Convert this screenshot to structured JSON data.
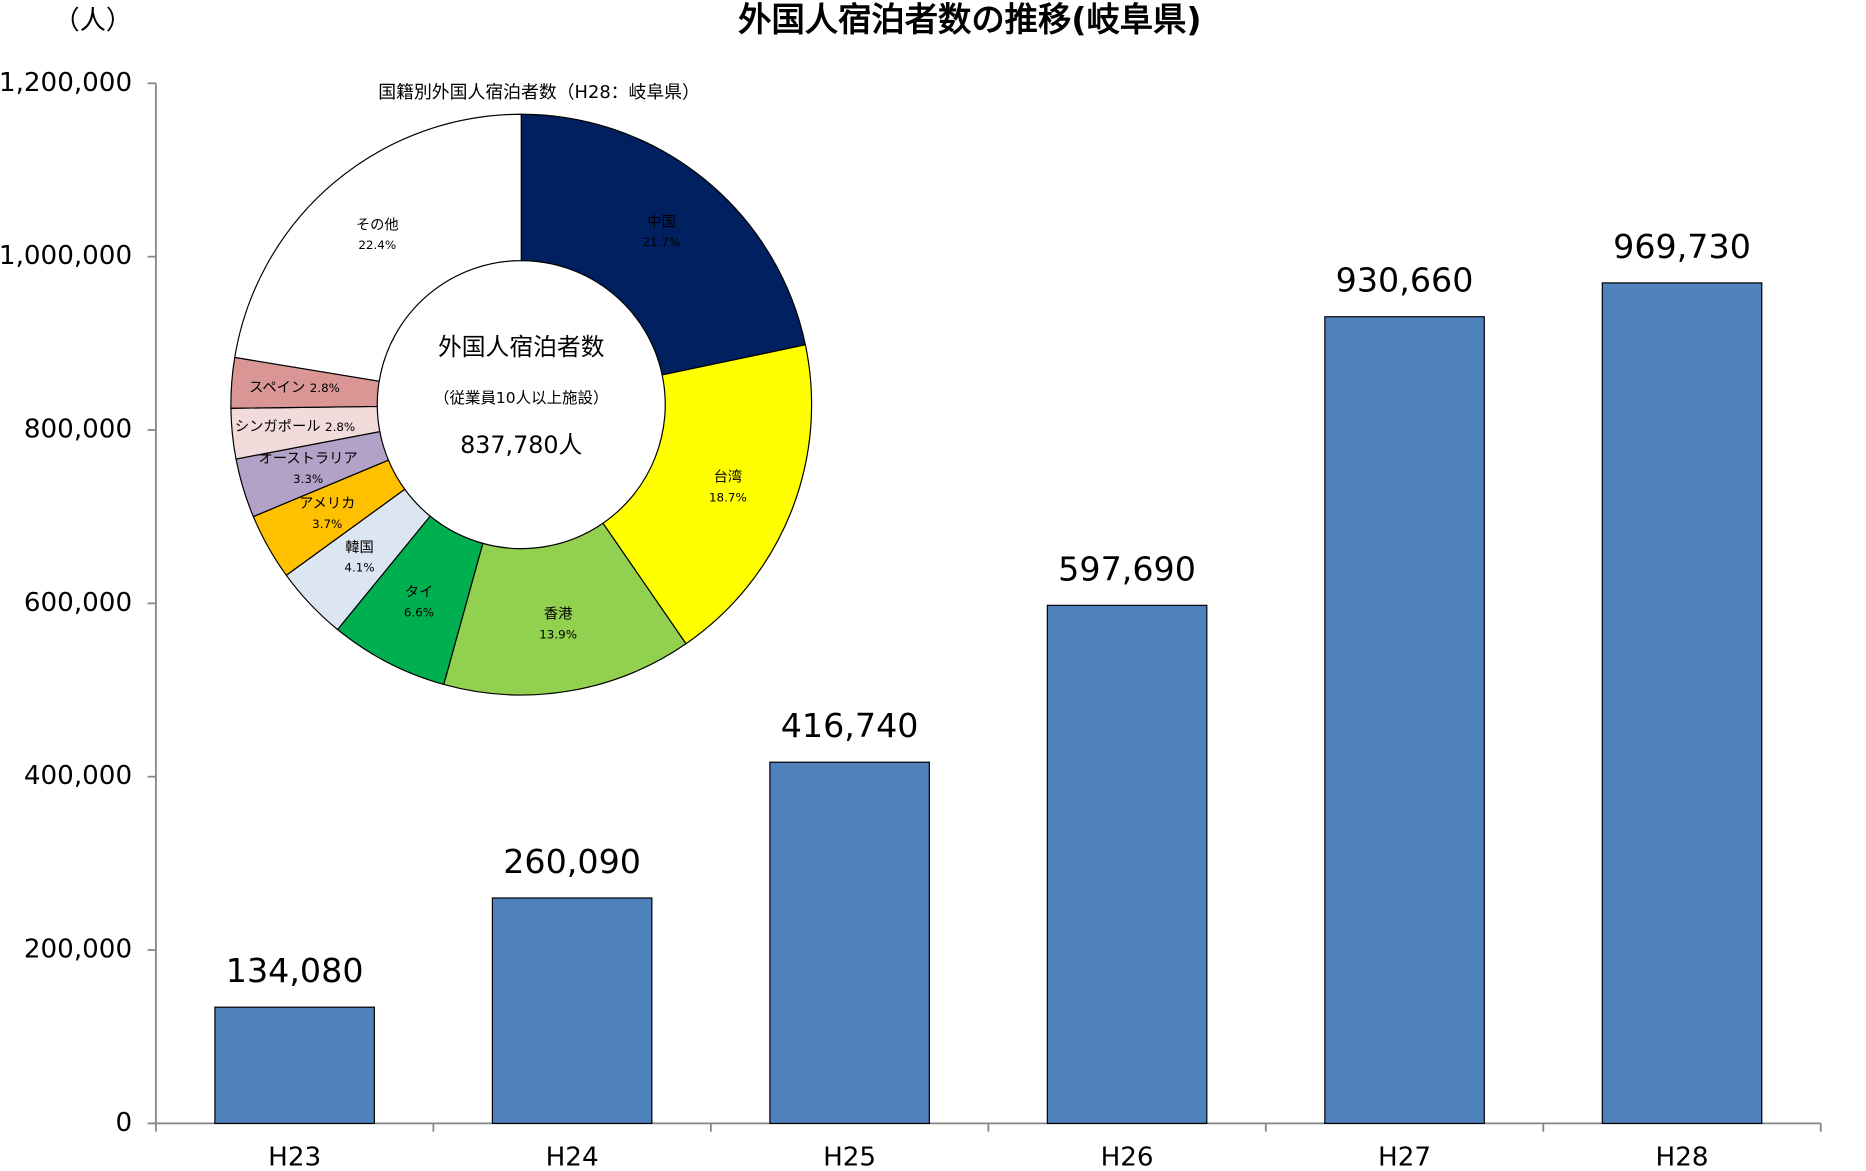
{
  "chart_data": [
    {
      "type": "bar",
      "title": "外国人宿泊者数の推移(岐阜県)",
      "y_unit": "（人）",
      "categories": [
        "H23",
        "H24",
        "H25",
        "H26",
        "H27",
        "H28"
      ],
      "values": [
        134080,
        260090,
        416740,
        597690,
        930660,
        969730
      ],
      "value_labels": [
        "134,080",
        "260,090",
        "416,740",
        "597,690",
        "930,660",
        "969,730"
      ],
      "color": "#4f81bd",
      "ylim": [
        0,
        1200000
      ],
      "yticks": [
        0,
        {
          "value": 200000,
          "label": "200,000"
        },
        {
          "value": 400000,
          "label": "400,000"
        },
        {
          "value": 600000,
          "label": "600,000"
        },
        {
          "value": 800000,
          "label": "800,000"
        },
        {
          "value": 1000000,
          "label": "1,000,000"
        },
        {
          "value": 1200000,
          "label": "1,200,000"
        }
      ],
      "grid": false
    },
    {
      "type": "pie",
      "title": "国籍別外国人宿泊者数（H28：岐阜県）",
      "center_text": [
        "外国人宿泊者数",
        "（従業員10人以上施設）",
        "837,780人"
      ],
      "categories": [
        "中国",
        "台湾",
        "香港",
        "タイ",
        "韓国",
        "アメリカ",
        "オーストラリア",
        "シンガポール",
        "スペイン",
        "その他"
      ],
      "values": [
        21.7,
        18.7,
        13.9,
        6.6,
        4.1,
        3.7,
        3.3,
        2.8,
        2.8,
        22.4
      ],
      "value_labels": [
        "21.7%",
        "18.7%",
        "13.9%",
        "6.6%",
        "4.1%",
        "3.7%",
        "3.3%",
        "2.8%",
        "2.8%",
        "22.4%"
      ],
      "colors": [
        "#002060",
        "#ffff00",
        "#92d050",
        "#00b050",
        "#dce6f2",
        "#ffc000",
        "#b3a2c7",
        "#f2dcdb",
        "#d99694",
        "#ffffff"
      ],
      "donut": true
    }
  ]
}
